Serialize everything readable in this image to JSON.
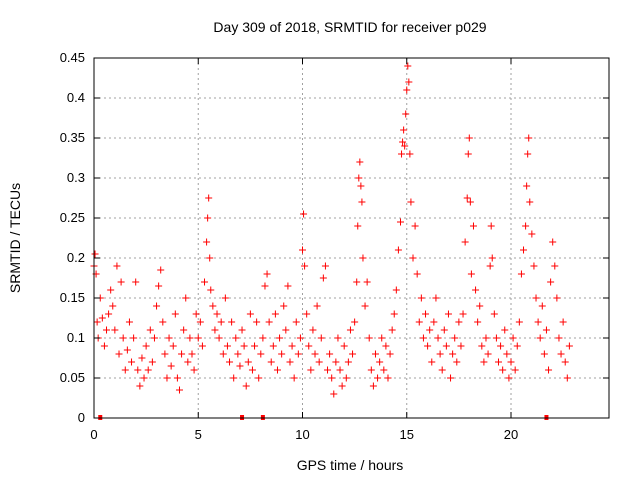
{
  "chart_data": {
    "type": "scatter",
    "title": "Day 309 of 2018, SRMTID for receiver p029",
    "xlabel": "GPS time / hours",
    "ylabel": "SRMTID / TECUs",
    "xlim": [
      0,
      24.7
    ],
    "ylim": [
      0,
      0.45
    ],
    "xticks": [
      0,
      5,
      10,
      15,
      20
    ],
    "xtick_labels": [
      "0",
      "5",
      "10",
      "15",
      "20"
    ],
    "yticks": [
      0,
      0.05,
      0.1,
      0.15,
      0.2,
      0.25,
      0.3,
      0.35,
      0.4,
      0.45
    ],
    "ytick_labels": [
      "0",
      "0.05",
      "0.1",
      "0.15",
      "0.2",
      "0.25",
      "0.3",
      "0.35",
      "0.4",
      "0.45"
    ],
    "grid": true,
    "marker": "+",
    "series_color": "#ff0000",
    "series": [
      {
        "name": "SRMTID",
        "points": [
          [
            0.0,
            0.19
          ],
          [
            0.05,
            0.205
          ],
          [
            0.1,
            0.18
          ],
          [
            0.15,
            0.12
          ],
          [
            0.2,
            0.1
          ],
          [
            0.3,
            0.15
          ],
          [
            0.4,
            0.125
          ],
          [
            0.5,
            0.09
          ],
          [
            0.6,
            0.11
          ],
          [
            0.7,
            0.13
          ],
          [
            0.8,
            0.16
          ],
          [
            0.9,
            0.14
          ],
          [
            1.0,
            0.11
          ],
          [
            1.1,
            0.19
          ],
          [
            1.2,
            0.08
          ],
          [
            1.3,
            0.17
          ],
          [
            1.4,
            0.1
          ],
          [
            1.5,
            0.06
          ],
          [
            1.6,
            0.085
          ],
          [
            1.7,
            0.12
          ],
          [
            1.8,
            0.07
          ],
          [
            1.9,
            0.1
          ],
          [
            2.0,
            0.17
          ],
          [
            2.1,
            0.06
          ],
          [
            2.2,
            0.04
          ],
          [
            2.3,
            0.075
          ],
          [
            2.4,
            0.05
          ],
          [
            2.5,
            0.09
          ],
          [
            2.6,
            0.06
          ],
          [
            2.7,
            0.11
          ],
          [
            2.8,
            0.07
          ],
          [
            2.9,
            0.1
          ],
          [
            3.0,
            0.14
          ],
          [
            3.1,
            0.165
          ],
          [
            3.2,
            0.185
          ],
          [
            3.3,
            0.12
          ],
          [
            3.4,
            0.08
          ],
          [
            3.5,
            0.05
          ],
          [
            3.6,
            0.1
          ],
          [
            3.7,
            0.065
          ],
          [
            3.8,
            0.09
          ],
          [
            3.9,
            0.13
          ],
          [
            4.0,
            0.05
          ],
          [
            4.1,
            0.035
          ],
          [
            4.2,
            0.08
          ],
          [
            4.3,
            0.11
          ],
          [
            4.4,
            0.15
          ],
          [
            4.5,
            0.07
          ],
          [
            4.6,
            0.1
          ],
          [
            4.7,
            0.08
          ],
          [
            4.8,
            0.06
          ],
          [
            4.9,
            0.13
          ],
          [
            5.0,
            0.1
          ],
          [
            5.1,
            0.12
          ],
          [
            5.2,
            0.09
          ],
          [
            5.3,
            0.17
          ],
          [
            5.4,
            0.22
          ],
          [
            5.45,
            0.25
          ],
          [
            5.5,
            0.275
          ],
          [
            5.55,
            0.2
          ],
          [
            5.6,
            0.16
          ],
          [
            5.7,
            0.14
          ],
          [
            5.8,
            0.11
          ],
          [
            5.9,
            0.13
          ],
          [
            6.0,
            0.1
          ],
          [
            6.1,
            0.12
          ],
          [
            6.2,
            0.08
          ],
          [
            6.3,
            0.15
          ],
          [
            6.4,
            0.09
          ],
          [
            6.5,
            0.07
          ],
          [
            6.6,
            0.12
          ],
          [
            6.7,
            0.05
          ],
          [
            6.8,
            0.1
          ],
          [
            6.9,
            0.08
          ],
          [
            7.0,
            0.065
          ],
          [
            7.1,
            0.11
          ],
          [
            7.2,
            0.09
          ],
          [
            7.3,
            0.04
          ],
          [
            7.4,
            0.07
          ],
          [
            7.5,
            0.13
          ],
          [
            7.6,
            0.06
          ],
          [
            7.7,
            0.09
          ],
          [
            7.8,
            0.12
          ],
          [
            7.9,
            0.05
          ],
          [
            8.0,
            0.08
          ],
          [
            8.1,
            0.1
          ],
          [
            8.2,
            0.165
          ],
          [
            8.3,
            0.18
          ],
          [
            8.4,
            0.12
          ],
          [
            8.5,
            0.07
          ],
          [
            8.6,
            0.09
          ],
          [
            8.7,
            0.13
          ],
          [
            8.8,
            0.06
          ],
          [
            8.9,
            0.1
          ],
          [
            9.0,
            0.08
          ],
          [
            9.1,
            0.14
          ],
          [
            9.2,
            0.11
          ],
          [
            9.3,
            0.165
          ],
          [
            9.4,
            0.07
          ],
          [
            9.5,
            0.09
          ],
          [
            9.6,
            0.05
          ],
          [
            9.7,
            0.12
          ],
          [
            9.8,
            0.08
          ],
          [
            9.9,
            0.1
          ],
          [
            10.0,
            0.21
          ],
          [
            10.05,
            0.255
          ],
          [
            10.1,
            0.19
          ],
          [
            10.2,
            0.13
          ],
          [
            10.3,
            0.09
          ],
          [
            10.4,
            0.06
          ],
          [
            10.5,
            0.11
          ],
          [
            10.6,
            0.08
          ],
          [
            10.7,
            0.14
          ],
          [
            10.8,
            0.07
          ],
          [
            10.9,
            0.1
          ],
          [
            11.0,
            0.175
          ],
          [
            11.1,
            0.19
          ],
          [
            11.2,
            0.06
          ],
          [
            11.3,
            0.08
          ],
          [
            11.4,
            0.05
          ],
          [
            11.5,
            0.03
          ],
          [
            11.6,
            0.07
          ],
          [
            11.7,
            0.1
          ],
          [
            11.8,
            0.06
          ],
          [
            11.9,
            0.04
          ],
          [
            12.0,
            0.09
          ],
          [
            12.1,
            0.05
          ],
          [
            12.2,
            0.07
          ],
          [
            12.3,
            0.11
          ],
          [
            12.4,
            0.08
          ],
          [
            12.5,
            0.12
          ],
          [
            12.6,
            0.17
          ],
          [
            12.65,
            0.24
          ],
          [
            12.7,
            0.3
          ],
          [
            12.75,
            0.32
          ],
          [
            12.8,
            0.29
          ],
          [
            12.85,
            0.27
          ],
          [
            12.9,
            0.2
          ],
          [
            13.0,
            0.14
          ],
          [
            13.1,
            0.17
          ],
          [
            13.2,
            0.1
          ],
          [
            13.3,
            0.06
          ],
          [
            13.4,
            0.04
          ],
          [
            13.5,
            0.08
          ],
          [
            13.6,
            0.05
          ],
          [
            13.7,
            0.07
          ],
          [
            13.8,
            0.1
          ],
          [
            13.9,
            0.06
          ],
          [
            14.0,
            0.09
          ],
          [
            14.1,
            0.05
          ],
          [
            14.2,
            0.08
          ],
          [
            14.3,
            0.11
          ],
          [
            14.4,
            0.13
          ],
          [
            14.5,
            0.16
          ],
          [
            14.6,
            0.21
          ],
          [
            14.7,
            0.245
          ],
          [
            14.75,
            0.33
          ],
          [
            14.8,
            0.345
          ],
          [
            14.85,
            0.36
          ],
          [
            14.9,
            0.34
          ],
          [
            14.95,
            0.38
          ],
          [
            15.0,
            0.41
          ],
          [
            15.05,
            0.44
          ],
          [
            15.1,
            0.42
          ],
          [
            15.15,
            0.33
          ],
          [
            15.2,
            0.27
          ],
          [
            15.3,
            0.2
          ],
          [
            15.4,
            0.24
          ],
          [
            15.5,
            0.18
          ],
          [
            15.6,
            0.12
          ],
          [
            15.7,
            0.15
          ],
          [
            15.8,
            0.1
          ],
          [
            15.9,
            0.13
          ],
          [
            16.0,
            0.09
          ],
          [
            16.1,
            0.11
          ],
          [
            16.2,
            0.07
          ],
          [
            16.3,
            0.12
          ],
          [
            16.4,
            0.15
          ],
          [
            16.5,
            0.1
          ],
          [
            16.6,
            0.08
          ],
          [
            16.7,
            0.06
          ],
          [
            16.8,
            0.11
          ],
          [
            16.9,
            0.09
          ],
          [
            17.0,
            0.13
          ],
          [
            17.1,
            0.05
          ],
          [
            17.2,
            0.08
          ],
          [
            17.3,
            0.1
          ],
          [
            17.4,
            0.07
          ],
          [
            17.5,
            0.12
          ],
          [
            17.6,
            0.09
          ],
          [
            17.7,
            0.13
          ],
          [
            17.8,
            0.22
          ],
          [
            17.9,
            0.275
          ],
          [
            17.95,
            0.33
          ],
          [
            18.0,
            0.35
          ],
          [
            18.05,
            0.27
          ],
          [
            18.1,
            0.18
          ],
          [
            18.2,
            0.24
          ],
          [
            18.3,
            0.16
          ],
          [
            18.4,
            0.12
          ],
          [
            18.5,
            0.14
          ],
          [
            18.6,
            0.09
          ],
          [
            18.7,
            0.07
          ],
          [
            18.8,
            0.1
          ],
          [
            18.9,
            0.08
          ],
          [
            19.0,
            0.19
          ],
          [
            19.05,
            0.24
          ],
          [
            19.1,
            0.2
          ],
          [
            19.2,
            0.13
          ],
          [
            19.3,
            0.1
          ],
          [
            19.4,
            0.07
          ],
          [
            19.5,
            0.09
          ],
          [
            19.6,
            0.06
          ],
          [
            19.7,
            0.11
          ],
          [
            19.8,
            0.08
          ],
          [
            19.9,
            0.05
          ],
          [
            20.0,
            0.07
          ],
          [
            20.1,
            0.1
          ],
          [
            20.2,
            0.06
          ],
          [
            20.3,
            0.09
          ],
          [
            20.4,
            0.12
          ],
          [
            20.5,
            0.18
          ],
          [
            20.6,
            0.21
          ],
          [
            20.7,
            0.24
          ],
          [
            20.75,
            0.29
          ],
          [
            20.8,
            0.33
          ],
          [
            20.85,
            0.35
          ],
          [
            20.9,
            0.27
          ],
          [
            21.0,
            0.23
          ],
          [
            21.1,
            0.19
          ],
          [
            21.2,
            0.15
          ],
          [
            21.3,
            0.12
          ],
          [
            21.4,
            0.1
          ],
          [
            21.5,
            0.14
          ],
          [
            21.6,
            0.08
          ],
          [
            21.7,
            0.11
          ],
          [
            21.8,
            0.06
          ],
          [
            21.9,
            0.17
          ],
          [
            22.0,
            0.22
          ],
          [
            22.1,
            0.19
          ],
          [
            22.2,
            0.15
          ],
          [
            22.3,
            0.1
          ],
          [
            22.4,
            0.08
          ],
          [
            22.5,
            0.12
          ],
          [
            22.6,
            0.07
          ],
          [
            22.7,
            0.05
          ],
          [
            22.8,
            0.09
          ]
        ],
        "zero_points": [
          0.3,
          7.1,
          8.1,
          21.7
        ]
      }
    ]
  }
}
